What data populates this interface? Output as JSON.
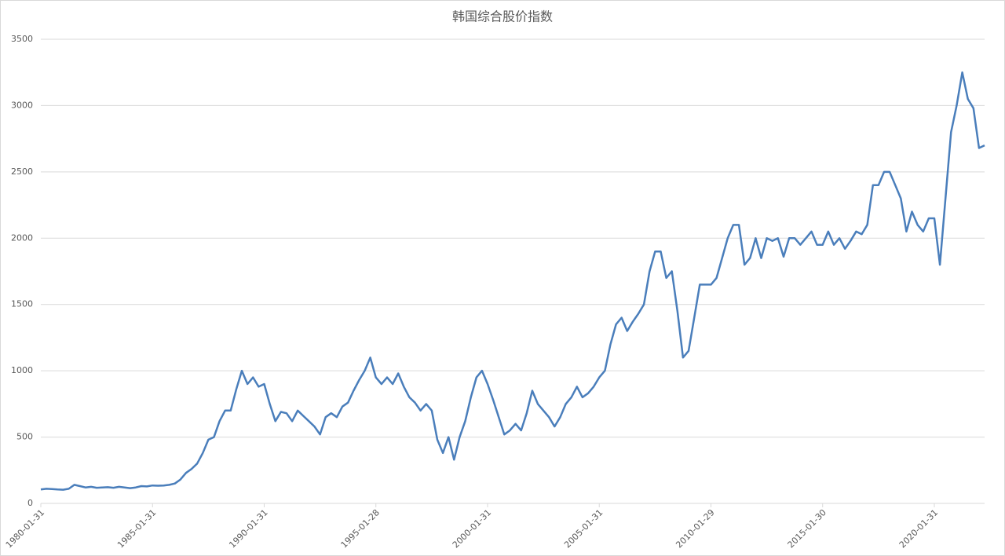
{
  "chart_data": {
    "type": "line",
    "title": "韩国综合股价指数",
    "categories": [
      "1980-01-31",
      null,
      null,
      null,
      null,
      null,
      null,
      null,
      null,
      null,
      null,
      null,
      null,
      null,
      null,
      null,
      null,
      null,
      null,
      null,
      "1985-01-31",
      null,
      null,
      null,
      null,
      null,
      null,
      null,
      null,
      null,
      null,
      null,
      null,
      null,
      null,
      null,
      null,
      null,
      null,
      null,
      "1990-01-31",
      null,
      null,
      null,
      null,
      null,
      null,
      null,
      null,
      null,
      null,
      null,
      null,
      null,
      null,
      null,
      null,
      null,
      null,
      null,
      "1995-01-28",
      null,
      null,
      null,
      null,
      null,
      null,
      null,
      null,
      null,
      null,
      null,
      null,
      null,
      null,
      null,
      null,
      null,
      null,
      null,
      "2000-01-31",
      null,
      null,
      null,
      null,
      null,
      null,
      null,
      null,
      null,
      null,
      null,
      null,
      null,
      null,
      null,
      null,
      null,
      null,
      null,
      "2005-01-31",
      null,
      null,
      null,
      null,
      null,
      null,
      null,
      null,
      null,
      null,
      null,
      null,
      null,
      null,
      null,
      null,
      null,
      null,
      null,
      "2010-01-29",
      null,
      null,
      null,
      null,
      null,
      null,
      null,
      null,
      null,
      null,
      null,
      null,
      null,
      null,
      null,
      null,
      null,
      null,
      null,
      "2015-01-30",
      null,
      null,
      null,
      null,
      null,
      null,
      null,
      null,
      null,
      null,
      null,
      null,
      null,
      null,
      null,
      null,
      null,
      null,
      null,
      "2020-01-31",
      null,
      null,
      null,
      null,
      null,
      null,
      null,
      null,
      null
    ],
    "series": [
      {
        "color": "#4a7ebb",
        "values": [
          105,
          110,
          108,
          105,
          103,
          110,
          140,
          130,
          120,
          125,
          118,
          120,
          122,
          118,
          125,
          120,
          115,
          120,
          130,
          128,
          135,
          133,
          135,
          140,
          150,
          180,
          230,
          260,
          300,
          380,
          480,
          500,
          620,
          700,
          700,
          860,
          1000,
          900,
          950,
          880,
          900,
          750,
          620,
          690,
          680,
          620,
          700,
          660,
          620,
          580,
          520,
          650,
          680,
          650,
          730,
          760,
          850,
          930,
          1000,
          1100,
          950,
          900,
          950,
          900,
          980,
          880,
          800,
          760,
          700,
          750,
          700,
          480,
          380,
          500,
          330,
          500,
          620,
          800,
          950,
          1000,
          900,
          780,
          650,
          520,
          550,
          600,
          550,
          680,
          850,
          750,
          700,
          650,
          580,
          650,
          750,
          800,
          880,
          800,
          830,
          880,
          950,
          1000,
          1200,
          1350,
          1400,
          1300,
          1370,
          1430,
          1500,
          1750,
          1900,
          1900,
          1700,
          1750,
          1450,
          1100,
          1150,
          1400,
          1650,
          1650,
          1650,
          1700,
          1850,
          2000,
          2100,
          2100,
          1800,
          1850,
          2000,
          1850,
          2000,
          1980,
          2000,
          1860,
          2000,
          2000,
          1950,
          2000,
          2050,
          1950,
          1950,
          2050,
          1950,
          2000,
          1920,
          1980,
          2050,
          2030,
          2100,
          2400,
          2400,
          2500,
          2500,
          2400,
          2300,
          2050,
          2200,
          2100,
          2050,
          2150,
          2150,
          1800,
          2300,
          2800,
          3000,
          3250,
          3050,
          2980,
          2680,
          2700
        ]
      }
    ],
    "ylim": [
      0,
      3500
    ],
    "yticks": [
      0,
      500,
      1000,
      1500,
      2000,
      2500,
      3000,
      3500
    ],
    "grid": true
  }
}
